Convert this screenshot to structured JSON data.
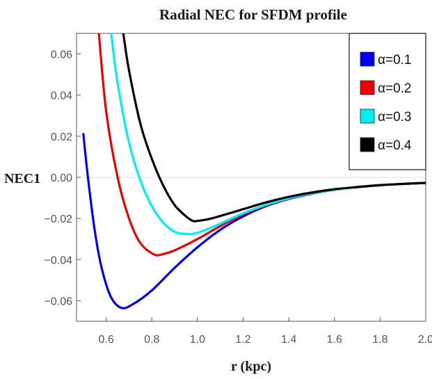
{
  "chart_data": {
    "type": "line",
    "title": "Radial NEC for SFDM profile",
    "xlabel": "r (kpc)",
    "ylabel": "NEC1",
    "xlim": [
      0.47,
      2.0
    ],
    "ylim": [
      -0.07,
      0.07
    ],
    "x_ticks": [
      "0.6",
      "0.8",
      "1.0",
      "1.2",
      "1.4",
      "1.6",
      "1.8",
      "2.0"
    ],
    "y_ticks": [
      "0.06",
      "0.04",
      "0.02",
      "0.00",
      "−0.02",
      "−0.04",
      "−0.06"
    ],
    "grid": false,
    "legend_position": "top-right",
    "series": [
      {
        "name": "α=0.1",
        "color": "#0000ee",
        "x": [
          0.5,
          0.52,
          0.55,
          0.58,
          0.62,
          0.667,
          0.72,
          0.8,
          0.9,
          1.0,
          1.1,
          1.2,
          1.3,
          1.4,
          1.5,
          1.6,
          1.7,
          1.8,
          1.9,
          2.0
        ],
        "y": [
          0.021,
          0.0,
          -0.026,
          -0.044,
          -0.058,
          -0.0635,
          -0.0615,
          -0.055,
          -0.044,
          -0.034,
          -0.0255,
          -0.019,
          -0.014,
          -0.0105,
          -0.008,
          -0.006,
          -0.0048,
          -0.0038,
          -0.0032,
          -0.0027
        ]
      },
      {
        "name": "α=0.2",
        "color": "#ee0000",
        "x": [
          0.568,
          0.6,
          0.65,
          0.7,
          0.75,
          0.81,
          0.85,
          0.9,
          1.0,
          1.1,
          1.2,
          1.3,
          1.4,
          1.5,
          1.6,
          1.7,
          1.8,
          1.9,
          2.0
        ],
        "y": [
          0.07,
          0.032,
          0.0,
          -0.02,
          -0.032,
          -0.0375,
          -0.0373,
          -0.0355,
          -0.03,
          -0.0237,
          -0.018,
          -0.0136,
          -0.0103,
          -0.0079,
          -0.006,
          -0.0048,
          -0.0038,
          -0.0032,
          -0.0027
        ]
      },
      {
        "name": "α=0.3",
        "color": "#00eeee",
        "x": [
          0.622,
          0.65,
          0.7,
          0.75,
          0.8,
          0.85,
          0.9,
          0.95,
          1.0,
          1.1,
          1.2,
          1.3,
          1.4,
          1.5,
          1.6,
          1.7,
          1.8,
          1.9,
          2.0
        ],
        "y": [
          0.07,
          0.046,
          0.017,
          -0.0015,
          -0.014,
          -0.022,
          -0.0265,
          -0.0275,
          -0.027,
          -0.0225,
          -0.0175,
          -0.0134,
          -0.0102,
          -0.0078,
          -0.006,
          -0.0048,
          -0.0038,
          -0.0032,
          -0.0027
        ]
      },
      {
        "name": "α=0.4",
        "color": "#000000",
        "x": [
          0.675,
          0.7,
          0.75,
          0.8,
          0.85,
          0.9,
          0.95,
          0.98,
          1.0,
          1.05,
          1.1,
          1.2,
          1.3,
          1.4,
          1.5,
          1.6,
          1.7,
          1.8,
          1.9,
          2.0
        ],
        "y": [
          0.07,
          0.052,
          0.026,
          0.009,
          -0.004,
          -0.0135,
          -0.019,
          -0.0212,
          -0.0212,
          -0.0203,
          -0.0188,
          -0.0155,
          -0.0122,
          -0.0095,
          -0.0074,
          -0.0058,
          -0.0047,
          -0.0038,
          -0.0032,
          -0.0027
        ]
      }
    ]
  }
}
